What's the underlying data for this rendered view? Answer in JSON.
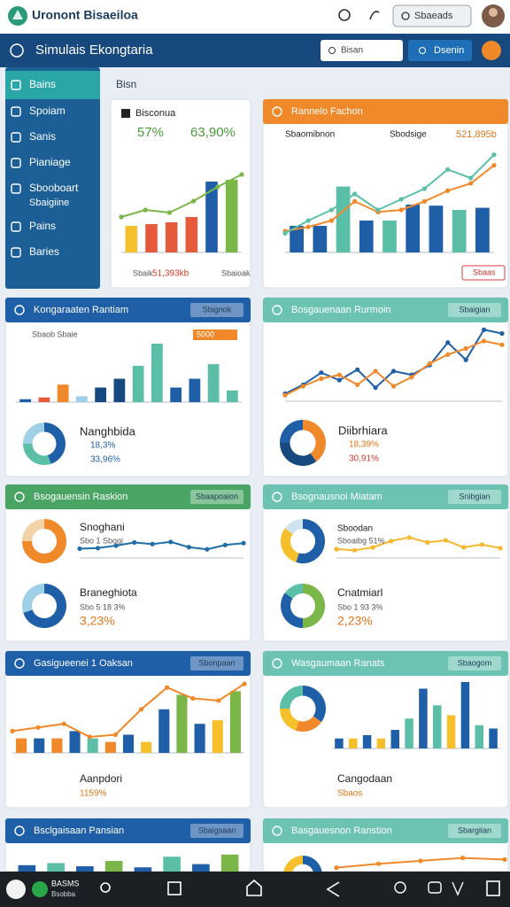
{
  "topbar": {
    "app_title": "Uronont Bisaeiloa",
    "search": "Sbaeads"
  },
  "header": {
    "title": "Simulais Ekongtaria",
    "input": "Bisan",
    "button": "Dsenin"
  },
  "sidebar": {
    "items": [
      {
        "label": "Bains"
      },
      {
        "label": "Spoiam"
      },
      {
        "label": "Sanis"
      },
      {
        "label": "Pianiage"
      },
      {
        "label": "Sbooboart",
        "sub": "Sbaigiine"
      },
      {
        "label": "Pains"
      },
      {
        "label": "Baries"
      }
    ]
  },
  "section_label": "Bisn",
  "cards": [
    {
      "title": "Bisconua",
      "texts": [
        "57%",
        "63,90%",
        "Sbaik",
        "51,393kb",
        "Sbaioak"
      ],
      "charts": [
        {
          "ylim": [
            0,
            100
          ],
          "series": [
            {
              "type": "bar",
              "colors": [
                "#f5c02c",
                "#e55a3b",
                "#e55a3b",
                "#e55a3b",
                "#1f5fa8",
                "#7ab648"
              ],
              "values": [
                30,
                32,
                34,
                40,
                80,
                82
              ]
            },
            {
              "type": "line",
              "color": "#7ab648",
              "values": [
                40,
                48,
                45,
                58,
                74,
                88
              ]
            }
          ]
        }
      ]
    },
    {
      "title": "Rannelo Fachon",
      "header_color": "#f0892a",
      "texts": [
        "Sbaomibnon",
        "Sbodsige",
        "521,895b",
        "Sbaas"
      ],
      "charts": [
        {
          "ylim": [
            0,
            100
          ],
          "series": [
            {
              "type": "bar",
              "colors": [
                "#1f5fa8",
                "#1f5fa8",
                "#5bbfa8",
                "#1f5fa8",
                "#5bbfa8",
                "#1f5fa8",
                "#1f5fa8",
                "#5bbfa8",
                "#1f5fa8"
              ],
              "values": [
                25,
                25,
                62,
                30,
                30,
                45,
                44,
                40,
                42
              ]
            },
            {
              "type": "line",
              "color": "#f0892a",
              "values": [
                20,
                24,
                30,
                48,
                38,
                40,
                48,
                58,
                65,
                82
              ]
            },
            {
              "type": "line",
              "color": "#5bbfa8",
              "values": [
                18,
                30,
                40,
                55,
                40,
                50,
                60,
                78,
                70,
                92
              ]
            }
          ]
        }
      ]
    },
    {
      "title": "Kongaraaten Rantiam",
      "header_color": "#1f5fa8",
      "button": "Sbignok",
      "texts": [
        "Sbaob Sbaie",
        "5000",
        "Nanghbida",
        "18,3%",
        "33,96%"
      ],
      "charts": [
        {
          "ylim": [
            0,
            100
          ],
          "series": [
            {
              "type": "bar",
              "colors": [
                "#1f5fa8",
                "#e55a3b",
                "#f0892a",
                "#9fd0e8",
                "#17497f",
                "#17497f",
                "#5bbfa8",
                "#5bbfa8",
                "#1f5fa8",
                "#1f5fa8",
                "#5bbfa8",
                "#5bbfa8"
              ],
              "values": [
                5,
                8,
                30,
                10,
                25,
                40,
                62,
                100,
                25,
                40,
                65,
                20
              ]
            }
          ]
        }
      ],
      "donuts": [
        {
          "values": [
            45,
            30,
            25
          ],
          "colors": [
            "#1f5fa8",
            "#5bbfa8",
            "#9fd0e8"
          ]
        }
      ]
    },
    {
      "title": "Bosgauenaan Rurmoin",
      "header_color": "#6cc3b3",
      "button": "Sbaigian",
      "texts": [
        "Diibrhiara",
        "18,39%",
        "30,91%"
      ],
      "charts": [
        {
          "ylim": [
            0,
            100
          ],
          "series": [
            {
              "type": "line",
              "color": "#1f5fa8",
              "values": [
                10,
                22,
                38,
                28,
                42,
                18,
                40,
                35,
                48,
                78,
                55,
                95,
                90
              ]
            },
            {
              "type": "line",
              "color": "#f0892a",
              "values": [
                8,
                20,
                30,
                35,
                22,
                40,
                20,
                32,
                50,
                62,
                70,
                80,
                75
              ]
            }
          ]
        }
      ],
      "donuts": [
        {
          "values": [
            40,
            35,
            25
          ],
          "colors": [
            "#f0892a",
            "#17497f",
            "#1f5fa8"
          ]
        }
      ]
    },
    {
      "title": "Bsogauensin Raskion",
      "header_color": "#4aa564",
      "button": "Sbaapoaion",
      "texts": [
        "Snoghani",
        "Sbo 1 Sbogi",
        "Braneghiota",
        "Sbo 5 18 3%",
        "3,23%"
      ],
      "charts": [
        {
          "ylim": [
            0,
            100
          ],
          "series": [
            {
              "type": "line",
              "color": "#1f6fa8",
              "values": [
                30,
                32,
                40,
                50,
                45,
                52,
                35,
                28,
                42,
                48
              ]
            }
          ]
        }
      ],
      "donuts": [
        {
          "values": [
            75,
            25
          ],
          "colors": [
            "#f0892a",
            "#f3d2a8"
          ]
        },
        {
          "values": [
            70,
            30
          ],
          "colors": [
            "#1f5fa8",
            "#9fd0e8"
          ]
        }
      ]
    },
    {
      "title": "Bsognausnoi Miatam",
      "header_color": "#6cc3b3",
      "button": "Snibgian",
      "texts": [
        "Sboodan",
        "Sboaibg 51%",
        "Cnatmiarl",
        "Sbo 1 93 3%",
        "2,23%"
      ],
      "charts": [
        {
          "ylim": [
            0,
            100
          ],
          "series": [
            {
              "type": "line",
              "color": "#f5b82c",
              "values": [
                25,
                22,
                30,
                48,
                58,
                44,
                50,
                30,
                38,
                28
              ]
            }
          ]
        }
      ],
      "donuts": [
        {
          "values": [
            55,
            30,
            15
          ],
          "colors": [
            "#1f5fa8",
            "#f5c02c",
            "#cfe3ef"
          ]
        },
        {
          "values": [
            50,
            35,
            15
          ],
          "colors": [
            "#7ab648",
            "#1f5fa8",
            "#5bbfa8"
          ]
        }
      ]
    },
    {
      "title": "Gasigueenei 1 Oaksan",
      "header_color": "#1f5fa8",
      "button": "Sbonpaan",
      "texts": [
        "Aanpdori",
        "1159%"
      ],
      "charts": [
        {
          "ylim": [
            0,
            100
          ],
          "series": [
            {
              "type": "bar",
              "colors": [
                "#f0892a",
                "#1f5fa8",
                "#f0892a",
                "#1f5fa8",
                "#5bbfa8",
                "#f0892a",
                "#1f5fa8",
                "#f5c02c",
                "#1f5fa8",
                "#7ab648",
                "#1f5fa8",
                "#f5c02c",
                "#7ab648"
              ],
              "values": [
                20,
                20,
                20,
                30,
                20,
                15,
                25,
                15,
                60,
                80,
                40,
                45,
                85
              ]
            },
            {
              "type": "line",
              "color": "#f0892a",
              "values": [
                30,
                35,
                40,
                22,
                25,
                60,
                90,
                75,
                72,
                95
              ]
            }
          ]
        }
      ]
    },
    {
      "title": "Wasgaumaan Ranats",
      "header_color": "#6cc3b3",
      "button": "Sbaogom",
      "texts": [
        "Cangodaan",
        "Sbaos"
      ],
      "charts": [
        {
          "ylim": [
            0,
            100
          ],
          "series": [
            {
              "type": "bar",
              "colors": [
                "#1f5fa8",
                "#f5c02c",
                "#1f5fa8",
                "#f5c02c",
                "#1f5fa8",
                "#5bbfa8",
                "#1f5fa8",
                "#5bbfa8",
                "#f5c02c",
                "#1f5fa8",
                "#5bbfa8",
                "#1f5fa8"
              ],
              "values": [
                15,
                15,
                20,
                15,
                28,
                45,
                90,
                65,
                50,
                100,
                35,
                30
              ]
            }
          ]
        }
      ],
      "donuts": [
        {
          "values": [
            35,
            20,
            20,
            25
          ],
          "colors": [
            "#1f5fa8",
            "#f0892a",
            "#f5c02c",
            "#5bbfa8"
          ]
        }
      ]
    },
    {
      "title": "Bsclgaisaan Pansian",
      "header_color": "#1f5fa8",
      "button": "Sbaigsaan",
      "charts": [
        {
          "ylim": [
            0,
            100
          ],
          "series": [
            {
              "type": "bar",
              "colors": [
                "#1f5fa8",
                "#5bbfa8",
                "#1f5fa8",
                "#7ab648",
                "#1f5fa8",
                "#5bbfa8",
                "#1f5fa8",
                "#7ab648"
              ],
              "values": [
                30,
                40,
                25,
                50,
                20,
                70,
                35,
                80
              ]
            }
          ]
        }
      ]
    },
    {
      "title": "Basgauesnon Ranstion",
      "header_color": "#6cc3b3",
      "button": "Sbargiian",
      "charts": [
        {
          "ylim": [
            0,
            100
          ],
          "series": [
            {
              "type": "line",
              "color": "#f0892a",
              "values": [
                20,
                40,
                55,
                70,
                62
              ]
            }
          ]
        }
      ],
      "donuts": [
        {
          "values": [
            40,
            30,
            30
          ],
          "colors": [
            "#1f5fa8",
            "#f0892a",
            "#f5c02c"
          ]
        }
      ]
    }
  ],
  "bottom_nav": {
    "label": "BASMS",
    "sublabel": "Bsobba"
  }
}
